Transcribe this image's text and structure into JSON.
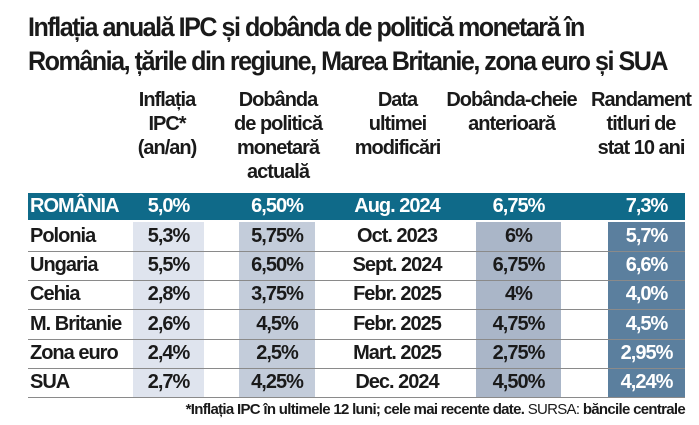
{
  "title": [
    "Inflația anuală IPC și dobânda de politică monetară în",
    "România, țările din regiune, Marea Britanie, zona euro și SUA"
  ],
  "columns": [
    [
      "Inflația",
      "IPC*",
      "(an/an)"
    ],
    [
      "Dobânda",
      "de politică",
      "monetară",
      "actuală"
    ],
    [
      "Data",
      "ultimei",
      "modificări"
    ],
    [
      "Dobânda-cheie",
      "anterioară"
    ],
    [
      "Randament",
      "titluri de",
      "stat 10 ani"
    ]
  ],
  "rows": [
    [
      "ROMÂNIA",
      "5,0%",
      "6,50%",
      "Aug. 2024",
      "6,75%",
      "7,3%"
    ],
    [
      "Polonia",
      "5,3%",
      "5,75%",
      "Oct. 2023",
      "6%",
      "5,7%"
    ],
    [
      "Ungaria",
      "5,5%",
      "6,50%",
      "Sept. 2024",
      "6,75%",
      "6,6%"
    ],
    [
      "Cehia",
      "2,8%",
      "3,75%",
      "Febr. 2025",
      "4%",
      "4,0%"
    ],
    [
      "M. Britanie",
      "2,6%",
      "4,5%",
      "Febr. 2025",
      "4,75%",
      "4,5%"
    ],
    [
      "Zona euro",
      "2,4%",
      "2,5%",
      "Mart. 2025",
      "2,75%",
      "2,95%"
    ],
    [
      "SUA",
      "2,7%",
      "4,25%",
      "Dec. 2024",
      "4,50%",
      "4,24%"
    ]
  ],
  "footnote": {
    "note": "*Inflația IPC în ultimele 12 luni; cele mai recente date.",
    "source_label": "SURSA:",
    "source": "băncile centrale"
  },
  "colors": {
    "highlight_row": "#0f6a89",
    "col1": "#dfe4ee",
    "col2": "#c3ccda",
    "col4": "#aab6c8",
    "col5": "#5b7f9e"
  }
}
